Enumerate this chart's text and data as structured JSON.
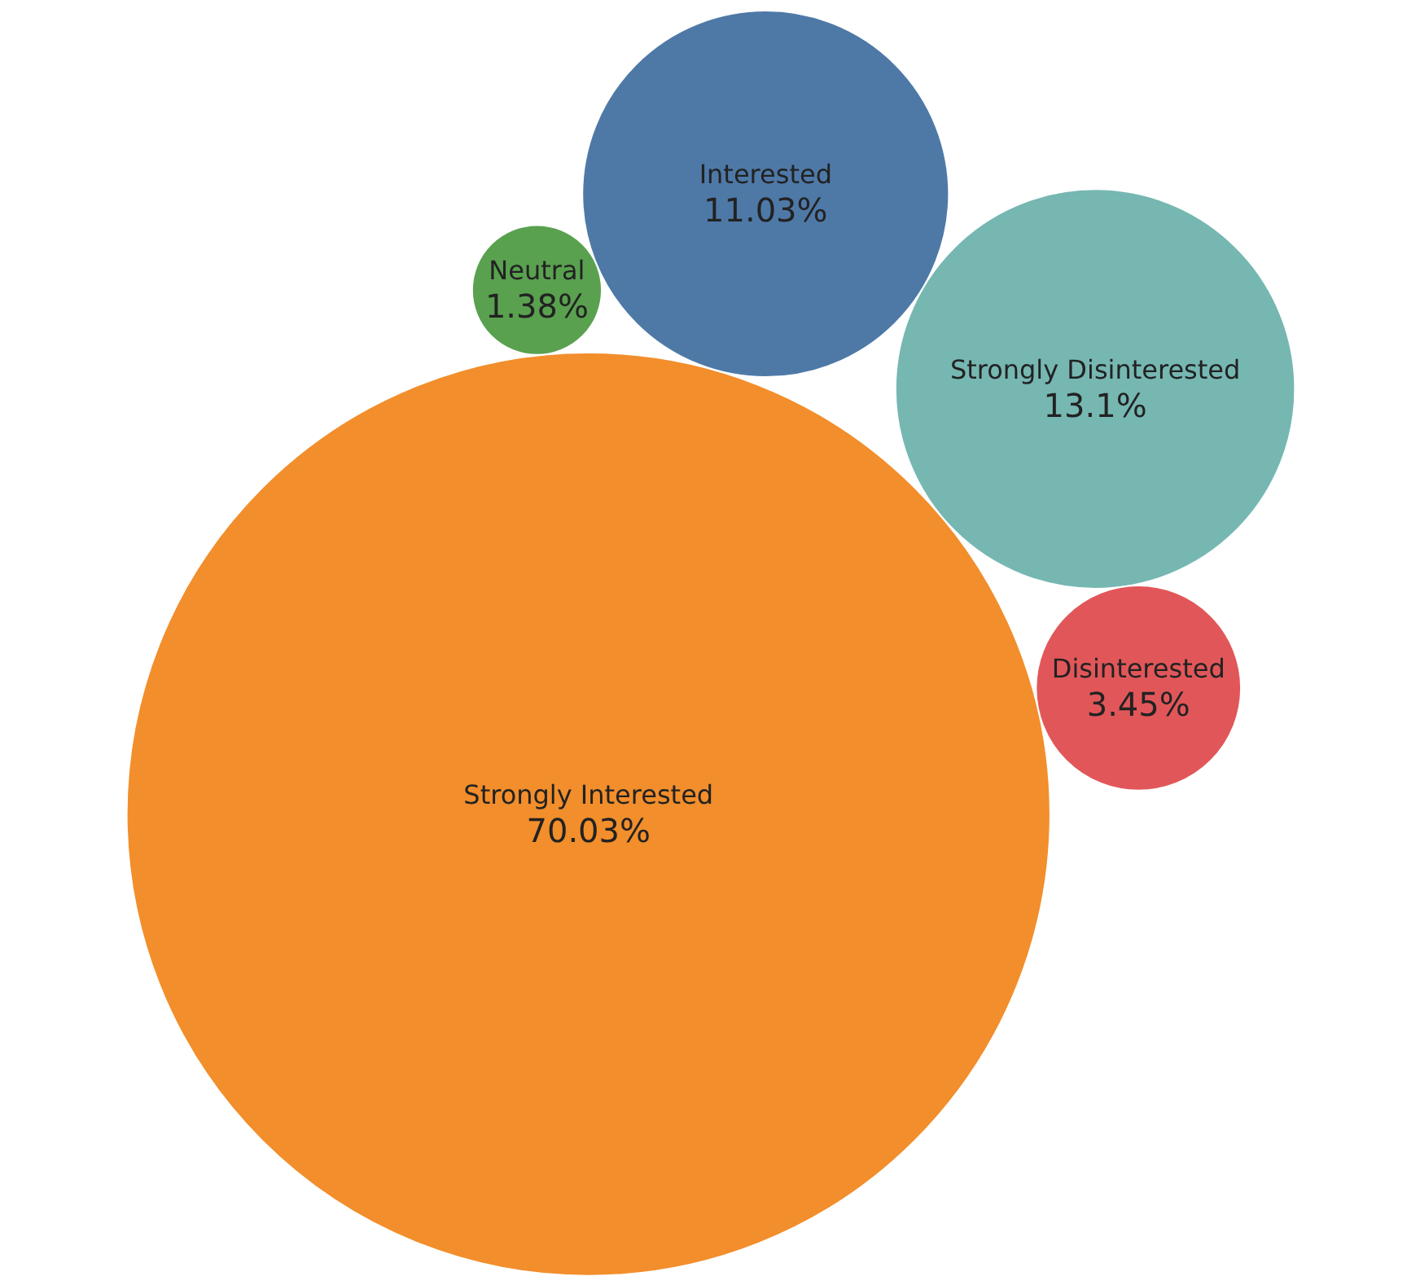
{
  "chart_data": {
    "type": "other",
    "categories": [
      "Strongly Interested",
      "Strongly Disinterested",
      "Interested",
      "Disinterested",
      "Neutral"
    ],
    "values": [
      70.03,
      13.1,
      11.03,
      3.45,
      1.38
    ],
    "value_labels": [
      "70.03%",
      "13.1%",
      "11.03%",
      "3.45%",
      "1.38%"
    ],
    "colors": [
      "#f28e2b",
      "#76b7b2",
      "#4e79a7",
      "#e15759",
      "#59a14f"
    ]
  }
}
